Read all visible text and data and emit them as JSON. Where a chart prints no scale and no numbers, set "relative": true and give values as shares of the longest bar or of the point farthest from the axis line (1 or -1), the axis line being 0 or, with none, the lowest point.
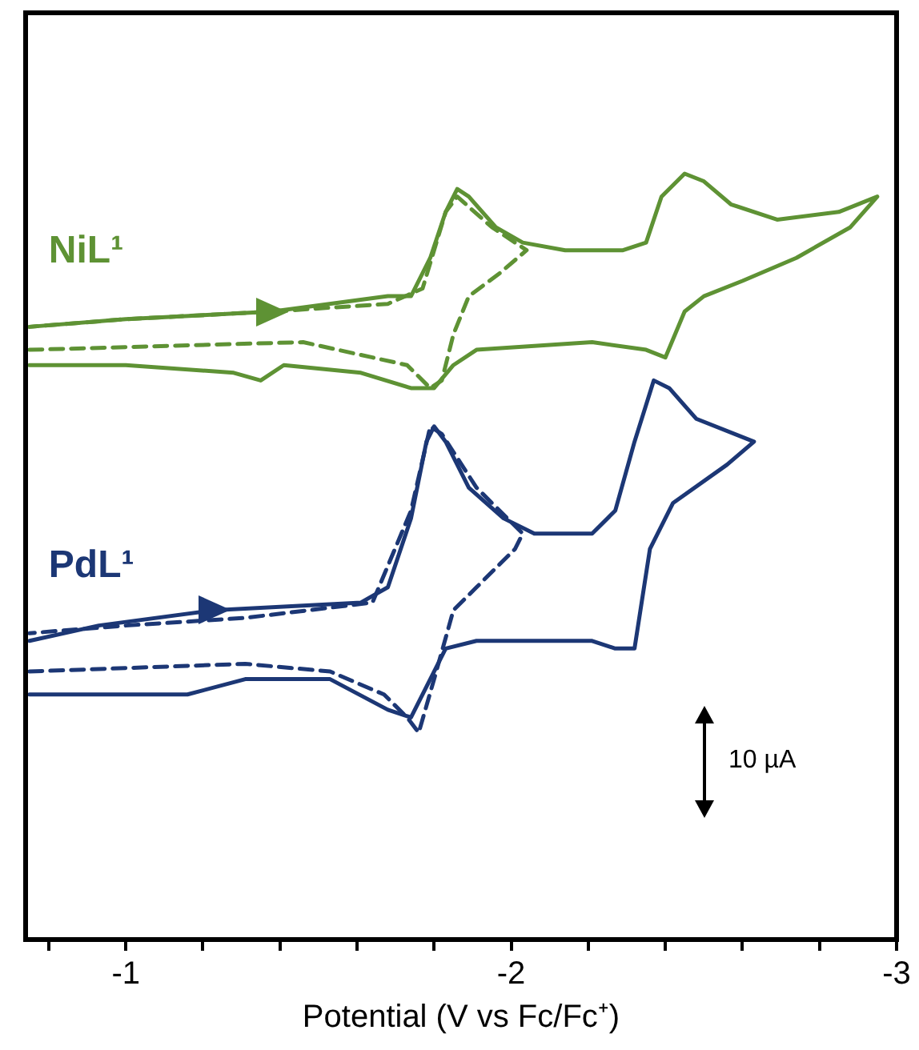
{
  "chart_data": {
    "type": "line",
    "xlabel": "Potential (V vs Fc/Fc⁺)",
    "relative": true,
    "xlim": [
      -0.74,
      -3.0
    ],
    "xticks": [
      {
        "value": -0.8,
        "label": null
      },
      -1,
      {
        "value": -1.2,
        "label": null
      },
      {
        "value": -1.4,
        "label": null
      },
      {
        "value": -1.6,
        "label": null
      },
      {
        "value": -1.8,
        "label": null
      },
      -2,
      {
        "value": -2.2,
        "label": null
      },
      {
        "value": -2.4,
        "label": null
      },
      {
        "value": -2.6,
        "label": null
      },
      {
        "value": -2.8,
        "label": null
      },
      -3
    ],
    "tick_labels": "x",
    "annotations": [
      "10 µA"
    ],
    "series": [
      {
        "name": "NiL¹",
        "color": "#5e9234",
        "x": [
          -0.75,
          -1.0,
          -1.38,
          -1.68,
          -1.74,
          -1.79,
          -1.83,
          -1.86,
          -1.89,
          -1.96,
          -2.03,
          -2.14,
          -2.29,
          -2.35,
          -2.39,
          -2.45,
          -2.5,
          -2.57,
          -2.69,
          -2.85,
          -2.95,
          -2.88,
          -2.74,
          -2.6,
          -2.5,
          -2.45,
          -2.4,
          -2.35,
          -2.21,
          -1.91,
          -1.85,
          -1.8,
          -1.74,
          -1.61,
          -1.41,
          -1.35,
          -1.28,
          -1.0,
          -0.75
        ],
        "values": [
          0.8,
          0.81,
          0.82,
          0.84,
          0.84,
          0.89,
          0.95,
          0.98,
          0.97,
          0.93,
          0.91,
          0.9,
          0.9,
          0.91,
          0.97,
          1.0,
          0.99,
          0.96,
          0.94,
          0.95,
          0.97,
          0.93,
          0.89,
          0.86,
          0.84,
          0.82,
          0.76,
          0.77,
          0.78,
          0.77,
          0.75,
          0.72,
          0.72,
          0.74,
          0.75,
          0.73,
          0.74,
          0.75,
          0.75
        ]
      },
      {
        "color": "#5e9234",
        "line_style": "dashed",
        "x": [
          -0.75,
          -1.46,
          -1.64,
          -1.73,
          -1.79,
          -1.82,
          -1.85,
          -1.89,
          -1.97,
          -2.04,
          -1.95,
          -1.86,
          -1.83,
          -1.77,
          -1.68,
          -1.38,
          -1.0,
          -0.75
        ],
        "values": [
          0.77,
          0.78,
          0.76,
          0.75,
          0.72,
          0.73,
          0.79,
          0.84,
          0.87,
          0.9,
          0.93,
          0.97,
          0.95,
          0.85,
          0.83,
          0.82,
          0.81,
          0.8
        ]
      },
      {
        "name": "PdL¹",
        "color": "#1c3775",
        "x": [
          -0.75,
          -0.93,
          -1.23,
          -1.61,
          -1.68,
          -1.74,
          -1.78,
          -1.8,
          -1.83,
          -1.89,
          -1.98,
          -2.06,
          -2.21,
          -2.27,
          -2.32,
          -2.37,
          -2.41,
          -2.48,
          -2.63,
          -2.56,
          -2.42,
          -2.36,
          -2.32,
          -2.27,
          -2.21,
          -1.91,
          -1.83,
          -1.79,
          -1.74,
          -1.68,
          -1.53,
          -1.31,
          -1.16,
          -0.85,
          -0.75
        ],
        "values": [
          0.39,
          0.41,
          0.43,
          0.44,
          0.46,
          0.55,
          0.65,
          0.67,
          0.65,
          0.59,
          0.55,
          0.53,
          0.53,
          0.56,
          0.65,
          0.73,
          0.72,
          0.68,
          0.65,
          0.62,
          0.57,
          0.51,
          0.38,
          0.38,
          0.39,
          0.39,
          0.38,
          0.34,
          0.29,
          0.3,
          0.34,
          0.34,
          0.32,
          0.32,
          0.32
        ]
      },
      {
        "color": "#1c3775",
        "line_style": "dashed",
        "x": [
          -0.75,
          -1.31,
          -1.53,
          -1.67,
          -1.73,
          -1.76,
          -1.8,
          -1.85,
          -1.91,
          -2.01,
          -2.03,
          -1.91,
          -1.82,
          -1.79,
          -1.74,
          -1.64,
          -1.31,
          -1.0,
          -0.75
        ],
        "values": [
          0.35,
          0.36,
          0.35,
          0.32,
          0.29,
          0.27,
          0.34,
          0.43,
          0.46,
          0.51,
          0.53,
          0.59,
          0.66,
          0.67,
          0.56,
          0.44,
          0.42,
          0.41,
          0.4
        ]
      }
    ]
  }
}
